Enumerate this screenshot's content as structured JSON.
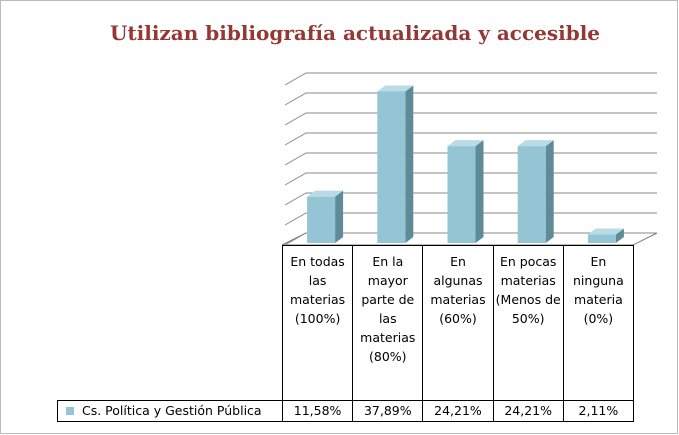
{
  "chart_data": {
    "type": "bar3d",
    "title": "Utilizan bibliografía actualizada y accesible",
    "categories": [
      "En todas las materias (100%)",
      "En la mayor parte de las materias (80%)",
      "En algunas materias (60%)",
      "En pocas materias (Menos de 50%)",
      "En ninguna materia (0%)"
    ],
    "series": [
      {
        "name": "Cs. Política y Gestión Pública",
        "color": "#93c5d5",
        "values": [
          11.58,
          37.89,
          24.21,
          24.21,
          2.11
        ],
        "value_labels": [
          "11,58%",
          "37,89%",
          "24,21%",
          "24,21%",
          "2,11%"
        ]
      }
    ],
    "ylim": [
      0,
      40
    ],
    "yticks": [
      0,
      5,
      10,
      15,
      20,
      25,
      30,
      35,
      40
    ],
    "grid": true
  }
}
